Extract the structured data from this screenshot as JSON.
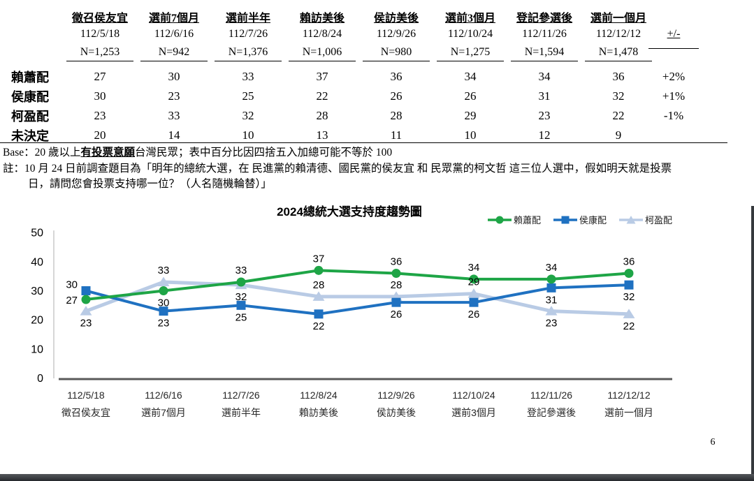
{
  "page": {
    "number": "6"
  },
  "table": {
    "columns": [
      {
        "event": "徵召侯友宜",
        "date": "112/5/18",
        "n": "N=1,253"
      },
      {
        "event": "選前7個月",
        "date": "112/6/16",
        "n": "N=942"
      },
      {
        "event": "選前半年",
        "date": "112/7/26",
        "n": "N=1,376"
      },
      {
        "event": "賴訪美後",
        "date": "112/8/24",
        "n": "N=1,006"
      },
      {
        "event": "侯訪美後",
        "date": "112/9/26",
        "n": "N=980"
      },
      {
        "event": "選前3個月",
        "date": "112/10/24",
        "n": "N=1,275"
      },
      {
        "event": "登記參選後",
        "date": "112/11/26",
        "n": "N=1,594"
      },
      {
        "event": "選前一個月",
        "date": "112/12/12",
        "n": "N=1,478"
      }
    ],
    "change_header": "+/-",
    "rows": [
      {
        "label": "賴蕭配",
        "values": [
          27,
          30,
          33,
          37,
          36,
          34,
          34,
          36
        ],
        "change": "+2%"
      },
      {
        "label": "侯康配",
        "values": [
          30,
          23,
          25,
          22,
          26,
          26,
          31,
          32
        ],
        "change": "+1%"
      },
      {
        "label": "柯盈配",
        "values": [
          23,
          33,
          32,
          28,
          28,
          29,
          23,
          22
        ],
        "change": "-1%"
      },
      {
        "label": "未決定",
        "values": [
          20,
          14,
          10,
          13,
          11,
          10,
          12,
          9
        ],
        "change": ""
      }
    ]
  },
  "notes": {
    "base_prefix": "Base：20 歲以上",
    "base_bold": "有投票意願",
    "base_suffix": "台灣民眾；表中百分比因四捨五入加總可能不等於 100",
    "note_line1": "註：10 月 24 日前調查題目為「明年的總統大選，在 民進黨的賴清德、國民黨的侯友宜 和 民眾黨的柯文哲 這三位人選中，假如明天就是投票",
    "note_line2": "日，請問您會投票支持哪一位？（人名隨機輪替）」"
  },
  "chart_data": {
    "type": "line",
    "title": "2024總統大選支持度趨勢圖",
    "x": [
      "112/5/18",
      "112/6/16",
      "112/7/26",
      "112/8/24",
      "112/9/26",
      "112/10/24",
      "112/11/26",
      "112/12/12"
    ],
    "x_events": [
      "徵召侯友宜",
      "選前7個月",
      "選前半年",
      "賴訪美後",
      "侯訪美後",
      "選前3個月",
      "登記參選後",
      "選前一個月"
    ],
    "ylim": [
      0,
      50
    ],
    "yticks": [
      0,
      10,
      20,
      30,
      40,
      50
    ],
    "grid": false,
    "legend_position": "top-right",
    "axis_color": "#595959",
    "yaxis_line_color": "#c8c8c8",
    "series": [
      {
        "name": "賴蕭配",
        "color": "#1EA546",
        "marker": "circle",
        "values": [
          27,
          30,
          33,
          37,
          36,
          34,
          34,
          36
        ],
        "label_pos": [
          "left-below",
          "below",
          "above",
          "above",
          "above",
          "above",
          "above",
          "above"
        ]
      },
      {
        "name": "侯康配",
        "color": "#1F71C1",
        "marker": "square",
        "values": [
          30,
          23,
          25,
          22,
          26,
          26,
          31,
          32
        ],
        "label_pos": [
          "left-above",
          "below",
          "below",
          "below",
          "below",
          "below",
          "below",
          "below"
        ]
      },
      {
        "name": "柯盈配",
        "color": "#B9CBE5",
        "marker": "triangle",
        "values": [
          23,
          33,
          32,
          28,
          28,
          29,
          23,
          22
        ],
        "label_pos": [
          "below",
          "above",
          "below",
          "above",
          "above",
          "above",
          "below",
          "below"
        ]
      }
    ]
  }
}
